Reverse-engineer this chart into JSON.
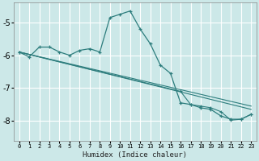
{
  "xlabel": "Humidex (Indice chaleur)",
  "bg_color": "#cce8e8",
  "grid_color": "#ffffff",
  "line_color": "#2d7d7d",
  "xlim": [
    -0.5,
    23.5
  ],
  "ylim": [
    -8.6,
    -4.4
  ],
  "yticks": [
    -8,
    -7,
    -6,
    -5
  ],
  "xticks": [
    0,
    1,
    2,
    3,
    4,
    5,
    6,
    7,
    8,
    9,
    10,
    11,
    12,
    13,
    14,
    15,
    16,
    17,
    18,
    19,
    20,
    21,
    22,
    23
  ],
  "lines": [
    {
      "x": [
        0,
        1,
        2,
        3,
        4,
        5,
        6,
        7,
        8,
        9,
        10,
        11,
        12,
        13,
        14,
        15,
        16,
        17,
        18,
        19,
        20,
        21,
        22,
        23
      ],
      "y": [
        -5.9,
        -6.05,
        -5.75,
        -5.75,
        -5.9,
        -6.0,
        -5.85,
        -5.8,
        -5.9,
        -4.85,
        -4.75,
        -4.65,
        -5.2,
        -5.65,
        -6.3,
        -6.55,
        -7.45,
        -7.5,
        -7.6,
        -7.65,
        -7.85,
        -7.95,
        -7.95,
        -7.8
      ]
    },
    {
      "x": [
        0,
        23
      ],
      "y": [
        -5.9,
        -7.55
      ]
    },
    {
      "x": [
        0,
        23
      ],
      "y": [
        -5.9,
        -7.65
      ]
    },
    {
      "x": [
        0,
        16,
        17,
        18,
        19,
        20,
        21,
        22,
        23
      ],
      "y": [
        -5.9,
        -7.1,
        -7.5,
        -7.55,
        -7.6,
        -7.72,
        -7.98,
        -7.95,
        -7.8
      ]
    }
  ]
}
